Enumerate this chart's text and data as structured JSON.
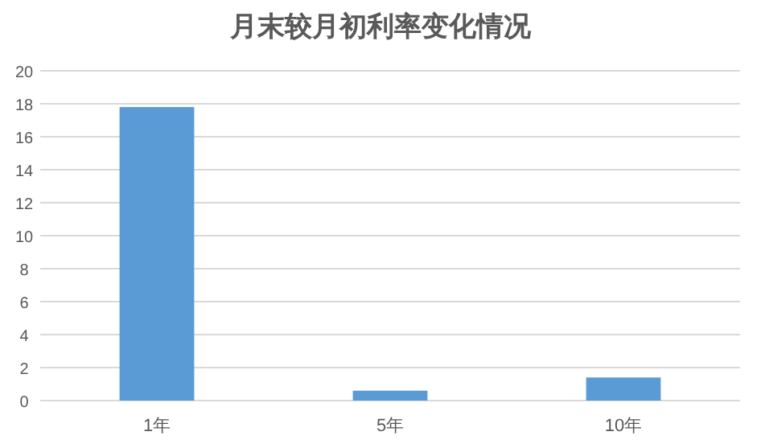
{
  "chart_data": {
    "type": "bar",
    "title": "月末较月初利率变化情况",
    "categories": [
      "1年",
      "5年",
      "10年"
    ],
    "values": [
      17.8,
      0.6,
      1.4
    ],
    "color": "#5b9bd5",
    "ylim": [
      0,
      20
    ],
    "yticks": [
      0,
      2,
      4,
      6,
      8,
      10,
      12,
      14,
      16,
      18,
      20
    ],
    "grid": "y"
  }
}
